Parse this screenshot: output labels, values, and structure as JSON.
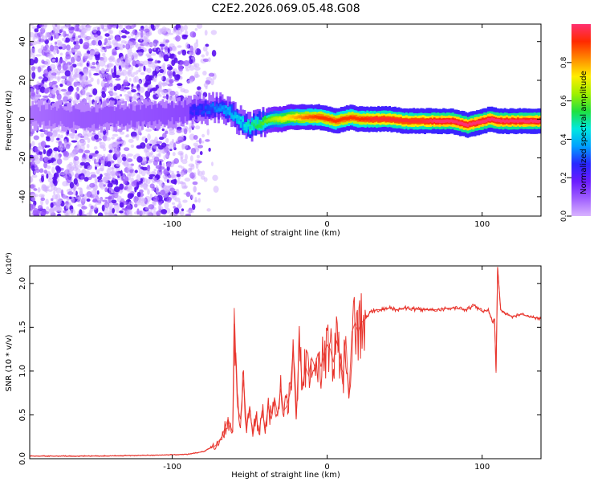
{
  "title": "C2E2.2026.069.05.48.G08",
  "chart_data": [
    {
      "type": "heatmap",
      "xlabel": "Height of straight line (km)",
      "ylabel": "Frequency (Hz)",
      "xlim": [
        -192,
        138
      ],
      "ylim": [
        -50,
        49
      ],
      "x_ticks": [
        -100,
        0,
        100
      ],
      "y_ticks": [
        -40,
        -20,
        0,
        20,
        40
      ],
      "colorbar": {
        "label": "Normalized spectral amplitude",
        "range": [
          0,
          1
        ],
        "ticks": [
          0.0,
          0.2,
          0.4,
          0.6,
          0.8
        ],
        "colors": [
          "#d9b3ff",
          "#a060ff",
          "#6a1bff",
          "#2828ff",
          "#00a0ff",
          "#00e8e0",
          "#20e040",
          "#a0f000",
          "#ffee00",
          "#ff8c00",
          "#ff2a00",
          "#ff3070"
        ]
      },
      "ridge": {
        "x": [
          -192,
          -160,
          -120,
          -90,
          -80,
          -70,
          -62,
          -55,
          -50,
          -45,
          -40,
          -35,
          -30,
          -25,
          -20,
          -15,
          -10,
          -5,
          0,
          5,
          10,
          15,
          20,
          30,
          40,
          50,
          60,
          70,
          80,
          85,
          90,
          95,
          100,
          105,
          110,
          120,
          130,
          138
        ],
        "freq": [
          2,
          1,
          2,
          4,
          5,
          6,
          3,
          -2,
          -4,
          -2,
          -1,
          0,
          0,
          1,
          1,
          1,
          1,
          1,
          0,
          -1,
          0,
          1,
          0,
          0,
          0,
          -1,
          -1,
          -1,
          -1,
          -2,
          -3,
          -2,
          -1,
          0,
          -1,
          -1,
          -1,
          -1
        ],
        "amplitude": [
          0.15,
          0.2,
          0.22,
          0.25,
          0.3,
          0.35,
          0.4,
          0.45,
          0.5,
          0.55,
          0.6,
          0.65,
          0.7,
          0.75,
          0.8,
          0.85,
          0.88,
          0.9,
          0.9,
          0.9,
          0.9,
          0.9,
          0.9,
          0.95,
          0.95,
          0.95,
          0.95,
          1.0,
          1.0,
          1.0,
          1.0,
          1.0,
          1.0,
          1.0,
          1.0,
          1.0,
          1.0,
          1.0
        ]
      },
      "noise_extent_km": [
        -192,
        -78
      ]
    },
    {
      "type": "line",
      "xlabel": "Height of straight line (km)",
      "ylabel": "SNR (10 * v/v)",
      "yscale_label": "(x10⁴)",
      "xlim": [
        -192,
        138
      ],
      "ylim": [
        0,
        2.2
      ],
      "x_ticks": [
        -100,
        0,
        100
      ],
      "y_ticks": [
        0.0,
        0.5,
        1.0,
        1.5,
        2.0
      ],
      "series": [
        {
          "name": "SNR",
          "color": "#e8322a",
          "x": [
            -192,
            -150,
            -110,
            -90,
            -80,
            -72,
            -68,
            -64,
            -61,
            -60,
            -58,
            -56,
            -54,
            -52,
            -50,
            -48,
            -46,
            -44,
            -42,
            -40,
            -38,
            -36,
            -34,
            -32,
            -30,
            -28,
            -26,
            -24,
            -22,
            -20,
            -18,
            -16,
            -14,
            -12,
            -10,
            -8,
            -6,
            -4,
            -2,
            0,
            2,
            4,
            6,
            8,
            10,
            12,
            14,
            16,
            18,
            20,
            22,
            25,
            28,
            32,
            36,
            40,
            45,
            50,
            60,
            70,
            80,
            90,
            95,
            100,
            104,
            106,
            107,
            108,
            109,
            110,
            112,
            115,
            120,
            125,
            130,
            138
          ],
          "values": [
            0.03,
            0.03,
            0.04,
            0.05,
            0.08,
            0.15,
            0.25,
            0.45,
            0.3,
            1.72,
            0.6,
            0.45,
            0.9,
            0.35,
            0.6,
            0.25,
            0.5,
            0.3,
            0.55,
            0.35,
            0.6,
            0.45,
            0.7,
            0.5,
            0.8,
            0.55,
            0.6,
            0.75,
            1.25,
            0.45,
            1.35,
            0.8,
            1.05,
            0.95,
            1.15,
            1.05,
            1.2,
            1.05,
            1.2,
            1.3,
            1.25,
            1.1,
            1.35,
            1.2,
            0.85,
            1.4,
            0.7,
            1.45,
            1.55,
            1.45,
            1.55,
            1.6,
            1.68,
            1.7,
            1.7,
            1.72,
            1.7,
            1.72,
            1.7,
            1.7,
            1.72,
            1.7,
            1.75,
            1.68,
            1.7,
            1.6,
            1.55,
            1.6,
            0.98,
            2.18,
            1.7,
            1.65,
            1.62,
            1.65,
            1.62,
            1.6
          ]
        }
      ]
    }
  ]
}
